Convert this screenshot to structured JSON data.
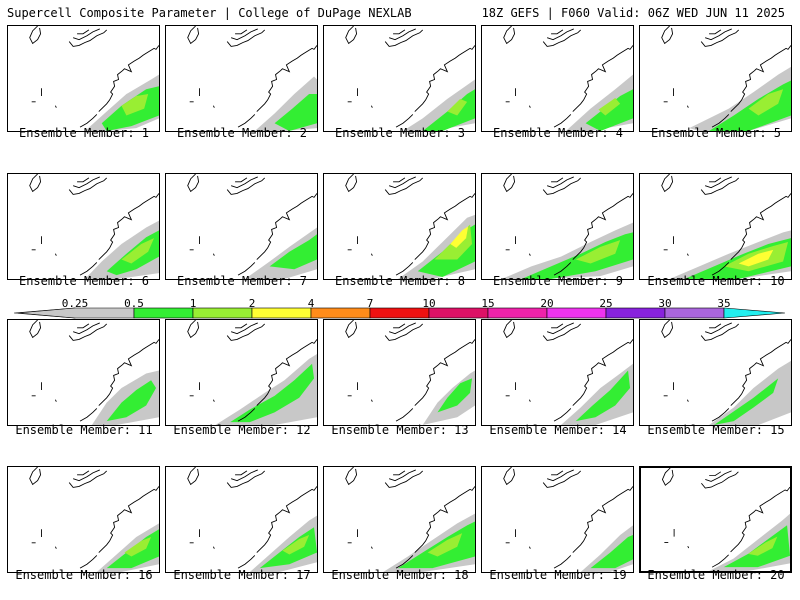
{
  "header": {
    "title": "Supercell Composite Parameter | College of DuPage NEXLAB",
    "valid": "18Z GEFS | F060 Valid: 06Z WED JUN 11 2025"
  },
  "panels": [
    {
      "caption": "Ensemble Member: 1"
    },
    {
      "caption": "Ensemble Member: 2"
    },
    {
      "caption": "Ensemble Member: 3"
    },
    {
      "caption": "Ensemble Member: 4"
    },
    {
      "caption": "Ensemble Member: 5"
    },
    {
      "caption": "Ensemble Member: 6"
    },
    {
      "caption": "Ensemble Member: 7"
    },
    {
      "caption": "Ensemble Member: 8"
    },
    {
      "caption": "Ensemble Member: 9"
    },
    {
      "caption": "Ensemble Member: 10"
    },
    {
      "caption": "Ensemble Member: 11"
    },
    {
      "caption": "Ensemble Member: 12"
    },
    {
      "caption": "Ensemble Member: 13"
    },
    {
      "caption": "Ensemble Member: 14"
    },
    {
      "caption": "Ensemble Member: 15"
    },
    {
      "caption": "Ensemble Member: 16"
    },
    {
      "caption": "Ensemble Member: 17"
    },
    {
      "caption": "Ensemble Member: 18"
    },
    {
      "caption": "Ensemble Member: 19"
    },
    {
      "caption": "Ensemble Member: 20"
    }
  ],
  "scale": {
    "labels": [
      "0.25",
      "0.5",
      "1",
      "2",
      "4",
      "7",
      "10",
      "15",
      "20",
      "25",
      "30",
      "35"
    ],
    "colors": [
      "#c8c8c8",
      "#33ee33",
      "#99ee33",
      "#ffff33",
      "#ff8c1a",
      "#ee1111",
      "#dd1166",
      "#ee22aa",
      "#ee33ee",
      "#8822dd",
      "#aa66dd",
      "#22eeee"
    ]
  },
  "map": {
    "gray": "#c8c8c8",
    "green": "#33ee33",
    "lime": "#99ee33",
    "yellow": "#ffff33"
  }
}
